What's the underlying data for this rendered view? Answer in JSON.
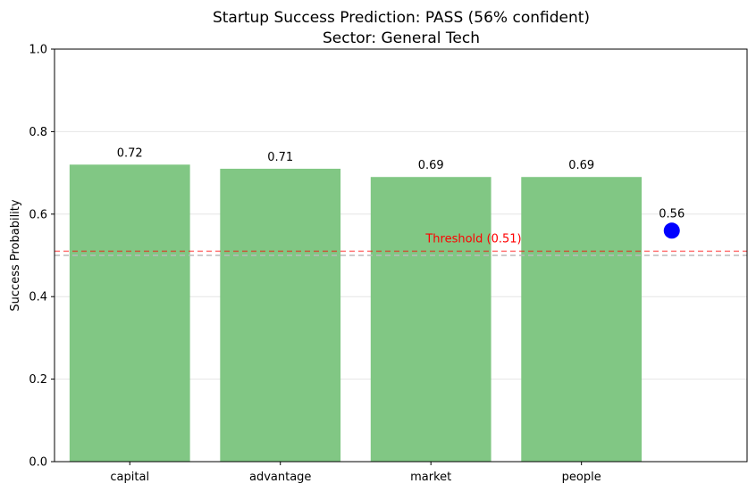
{
  "chart_data": {
    "type": "bar",
    "title_line1": "Startup Success Prediction: PASS (56% confident)",
    "title_line2": "Sector: General Tech",
    "xlabel": "",
    "ylabel": "Success Probability",
    "ylim": [
      0,
      1
    ],
    "yticks": [
      "0.0",
      "0.2",
      "0.4",
      "0.6",
      "0.8",
      "1.0"
    ],
    "categories": [
      "capital",
      "advantage",
      "market",
      "people"
    ],
    "values": [
      0.72,
      0.71,
      0.69,
      0.69
    ],
    "value_labels": [
      "0.72",
      "0.71",
      "0.69",
      "0.69"
    ],
    "bar_color": "#81c784",
    "grid": true,
    "threshold": {
      "value": 0.51,
      "label": "Threshold (0.51)",
      "color": "#ff0000"
    },
    "reference_line": {
      "value": 0.5,
      "color": "#bbbbbb"
    },
    "overall": {
      "value": 0.56,
      "label": "0.56",
      "color": "#0000ff"
    }
  }
}
